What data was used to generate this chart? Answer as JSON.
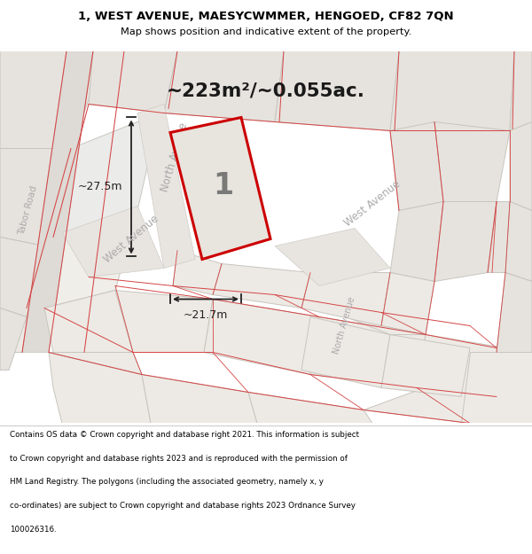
{
  "title_line1": "1, WEST AVENUE, MAESYCWMMER, HENGOED, CF82 7QN",
  "title_line2": "Map shows position and indicative extent of the property.",
  "area_text": "~223m²/~0.055ac.",
  "dim_width": "~21.7m",
  "dim_height": "~27.5m",
  "plot_number": "1",
  "footer_lines": [
    "Contains OS data © Crown copyright and database right 2021. This information is subject",
    "to Crown copyright and database rights 2023 and is reproduced with the permission of",
    "HM Land Registry. The polygons (including the associated geometry, namely x, y",
    "co-ordinates) are subject to Crown copyright and database rights 2023 Ordnance Survey",
    "100026316."
  ],
  "bg_color": "#f0eeea",
  "block_color": "#e6e3de",
  "block_light": "#edeae5",
  "road_color": "#dedad5",
  "plot_fill": "#e8e4de",
  "plot_stroke": "#cc0000",
  "red_line_color": "#d44444",
  "outline_color": "#c8c5bf",
  "road_label_color": "#aaaaaa",
  "title_color": "#000000",
  "footer_color": "#000000",
  "dim_color": "#222222",
  "header_bg": "#ffffff",
  "footer_bg": "#ffffff",
  "border_color": "#cccccc"
}
